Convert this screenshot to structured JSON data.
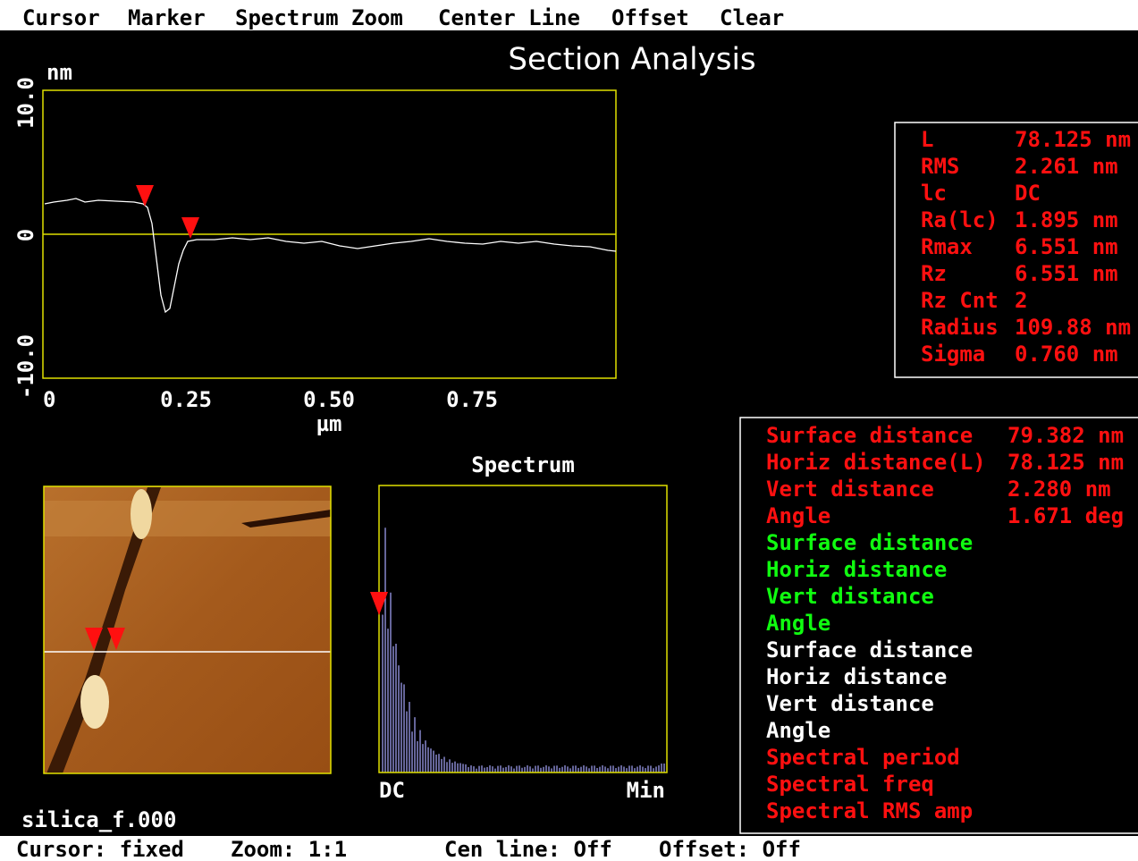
{
  "menu": [
    "Cursor",
    "Marker",
    "Spectrum Zoom",
    "Center Line",
    "Offset",
    "Clear"
  ],
  "title": "Section Analysis",
  "profile": {
    "y_unit": "nm",
    "y_ticks": [
      "10.0",
      "0",
      "-10.0"
    ],
    "x_ticks": [
      "0",
      "0.25",
      "0.50",
      "0.75"
    ],
    "x_unit": "µm"
  },
  "stats": {
    "color": "#ff1010",
    "rows": [
      [
        "L",
        "78.125 nm"
      ],
      [
        "RMS",
        "2.261 nm"
      ],
      [
        "lc",
        "DC"
      ],
      [
        "Ra(lc)",
        "1.895 nm"
      ],
      [
        "Rmax",
        "6.551 nm"
      ],
      [
        "Rz",
        "6.551 nm"
      ],
      [
        "Rz Cnt",
        "2"
      ],
      [
        "Radius",
        "109.88 nm"
      ],
      [
        "Sigma",
        "0.760 nm"
      ]
    ]
  },
  "measurement_groups": [
    {
      "color": "#ff1010",
      "items": [
        {
          "label": "Surface distance",
          "value": "79.382 nm"
        },
        {
          "label": "Horiz distance(L)",
          "value": "78.125 nm"
        },
        {
          "label": "Vert distance",
          "value": "2.280 nm"
        },
        {
          "label": "Angle",
          "value": "1.671 deg"
        }
      ]
    },
    {
      "color": "#10ff10",
      "items": [
        {
          "label": "Surface distance"
        },
        {
          "label": "Horiz distance"
        },
        {
          "label": "Vert distance"
        },
        {
          "label": "Angle"
        }
      ]
    },
    {
      "color": "#ffffff",
      "items": [
        {
          "label": "Surface distance"
        },
        {
          "label": "Horiz distance"
        },
        {
          "label": "Vert distance"
        },
        {
          "label": "Angle"
        }
      ]
    },
    {
      "color": "#ff1010",
      "items": [
        {
          "label": "Spectral period"
        },
        {
          "label": "Spectral freq"
        },
        {
          "label": "Spectral RMS amp"
        }
      ]
    }
  ],
  "spectrum": {
    "title": "Spectrum",
    "x_start": "DC",
    "x_end": "Min"
  },
  "filename": "silica_f.000",
  "status": [
    "Cursor: fixed",
    "Zoom: 1:1",
    "Cen line: Off",
    "Offset: Off"
  ]
}
